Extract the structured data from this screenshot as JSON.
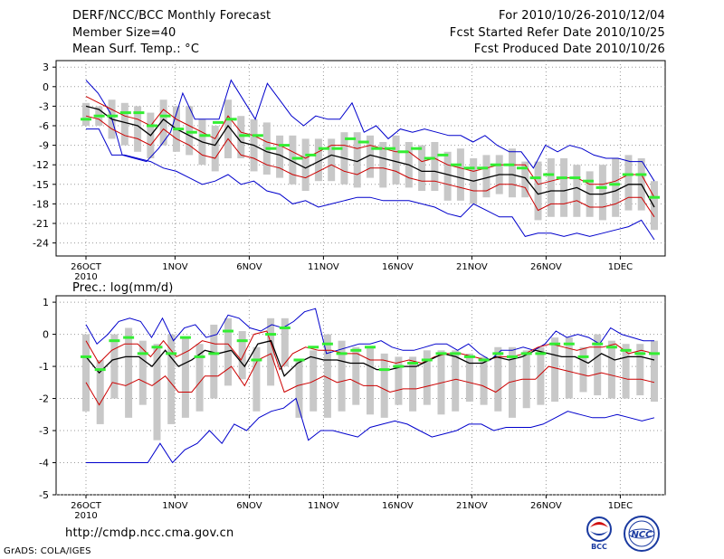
{
  "header": {
    "title": "DERF/NCC/BCC Monthly Forecast",
    "member_size": "Member Size=40",
    "variable": "Mean Surf. Temp.: °C",
    "forecast_period": "For 2010/10/26-2010/12/04",
    "started_refer": "Fcst Started Refer Date 2010/10/25",
    "produced": "Fcst Produced Date 2010/10/26"
  },
  "footer": {
    "url": "http://cmdp.ncc.cma.gov.cn",
    "credit": "GrADS: COLA/IGES",
    "logo_bcc": "BCC",
    "logo_ncc": "NCC"
  },
  "colors": {
    "max_min": "#0000cc",
    "spread": "#cc0000",
    "mean": "#000000",
    "observed": "#33ee33",
    "box": "#c8c8c8"
  },
  "chart_data": [
    {
      "type": "line",
      "title": "Mean Surf. Temp.: °C",
      "x_tick_labels": [
        "26OCT",
        "1NOV",
        "6NOV",
        "11NOV",
        "16NOV",
        "21NOV",
        "26NOV",
        "1DEC"
      ],
      "x_tick_days": [
        0,
        6,
        11,
        16,
        21,
        26,
        31,
        36
      ],
      "x_year_label": "2010",
      "ylim": [
        -26,
        4
      ],
      "yticks": [
        3,
        0,
        -3,
        -6,
        -9,
        -12,
        -15,
        -18,
        -21,
        -24
      ],
      "series": [
        {
          "name": "max",
          "values": [
            1,
            -1,
            -4,
            -10.5,
            -11,
            -11.5,
            -9.5,
            -7,
            -1,
            -5,
            -5,
            -5,
            1,
            -2,
            -5,
            0.5,
            -2,
            -4.5,
            -6,
            -4.5,
            -5,
            -5,
            -2.5,
            -7,
            -6,
            -8,
            -6.5,
            -7,
            -6.5,
            -7,
            -7.5,
            -7.5,
            -8.5,
            -7.5,
            -9,
            -10,
            -10,
            -12.5,
            -9,
            -10,
            -9,
            -9.5,
            -10.5,
            -11,
            -11,
            -11.5,
            -11.5,
            -14.5
          ]
        },
        {
          "name": "min",
          "values": [
            -6.5,
            -6.5,
            -10.5,
            -10.5,
            -11,
            -11.5,
            -12.5,
            -13,
            -14,
            -15,
            -14.5,
            -13.5,
            -15,
            -14.5,
            -16,
            -16.5,
            -18,
            -17.5,
            -18.5,
            -18,
            -17.5,
            -17,
            -17,
            -17.5,
            -17.5,
            -17.5,
            -18,
            -18.5,
            -19.5,
            -20,
            -18,
            -19,
            -20,
            -20,
            -23,
            -22.5,
            -22.5,
            -23,
            -22.5,
            -23,
            -22.5,
            -22,
            -21.5,
            -20.5,
            -23.5
          ]
        },
        {
          "name": "mean_plus_std",
          "values": [
            -1.5,
            -2.5,
            -3.5,
            -4.5,
            -5,
            -6,
            -3.5,
            -5,
            -6,
            -7,
            -8,
            -4.5,
            -7,
            -7.5,
            -8.5,
            -9,
            -10,
            -11,
            -10,
            -9,
            -9,
            -9.5,
            -9,
            -9.5,
            -10,
            -10,
            -11.5,
            -11,
            -12,
            -12.5,
            -13,
            -12.5,
            -12,
            -12,
            -12,
            -15,
            -14.5,
            -14,
            -14,
            -15,
            -15,
            -14.5,
            -13.5,
            -13.5,
            -17
          ]
        },
        {
          "name": "mean",
          "values": [
            -3,
            -3.5,
            -5,
            -5.5,
            -6,
            -7.5,
            -5,
            -6.5,
            -7.5,
            -8.5,
            -9,
            -6,
            -8.5,
            -9,
            -10,
            -10.5,
            -11.5,
            -12.5,
            -11.5,
            -10.5,
            -11,
            -11.5,
            -10.5,
            -11,
            -11.5,
            -12,
            -13,
            -13,
            -13.5,
            -14,
            -14.5,
            -14,
            -13.5,
            -13.5,
            -14,
            -16.5,
            -16,
            -16,
            -15.5,
            -16.5,
            -16.5,
            -16,
            -15,
            -15,
            -18.5
          ]
        },
        {
          "name": "mean_minus_std",
          "values": [
            -4.5,
            -5,
            -6.5,
            -7.5,
            -8,
            -9,
            -6.5,
            -8,
            -9,
            -10.5,
            -11,
            -8,
            -10.5,
            -11,
            -12,
            -12.5,
            -13.5,
            -14,
            -13,
            -12,
            -13,
            -13.5,
            -12.5,
            -12.5,
            -13,
            -14,
            -14.5,
            -14.5,
            -15,
            -15.5,
            -16,
            -16,
            -15,
            -15,
            -15.5,
            -19,
            -18,
            -18,
            -17.5,
            -18.5,
            -18.5,
            -18,
            -17,
            -17,
            -20
          ]
        },
        {
          "name": "observed",
          "values": [
            -5,
            -4.5,
            -4.5,
            -4,
            -4,
            -6,
            -4.5,
            -6.5,
            -7,
            -7.5,
            -5.5,
            -5,
            -7.5,
            -7.5,
            -9.5,
            -9,
            -11,
            -10.5,
            -9.5,
            -9.5,
            -8,
            -8.5,
            -9.5,
            -9.5,
            -10,
            -9.5,
            -11,
            -10.5,
            -12,
            -12.5,
            -12.5,
            -12,
            -12,
            -12.5,
            -14,
            -13.5,
            -14,
            -14,
            -14.5,
            -15.5,
            -15,
            -13.5,
            -13.5,
            -17
          ]
        }
      ],
      "box_top": [
        -2.5,
        -3,
        -2,
        -2.5,
        -3,
        -4,
        -2,
        -3,
        -3,
        -5,
        -6,
        -2,
        -4.5,
        -5,
        -5.5,
        -7.5,
        -7.5,
        -8,
        -8,
        -8,
        -7,
        -7,
        -7.5,
        -8.5,
        -7.5,
        -8.5,
        -9,
        -8.5,
        -10,
        -9.5,
        -11,
        -10.5,
        -10.5,
        -9.5,
        -11.5,
        -11.5,
        -11,
        -11,
        -12,
        -13,
        -12,
        -11,
        -10.5,
        -11,
        -14.5
      ],
      "box_bottom": [
        -6,
        -6,
        -8,
        -9,
        -10,
        -11,
        -9,
        -10,
        -10.5,
        -12,
        -13,
        -11,
        -11,
        -13,
        -13.5,
        -14,
        -15,
        -16,
        -14.5,
        -14.5,
        -15,
        -15.5,
        -14,
        -15.5,
        -15,
        -15.5,
        -16,
        -16,
        -17.5,
        -17.5,
        -18,
        -17,
        -16.5,
        -17,
        -17,
        -20.5,
        -20,
        -20,
        -20,
        -20,
        -20.5,
        -20,
        -19,
        -19,
        -22
      ]
    },
    {
      "type": "line",
      "title": "Prec.: log(mm/d)",
      "x_tick_labels": [
        "26OCT",
        "1NOV",
        "6NOV",
        "11NOV",
        "16NOV",
        "21NOV",
        "26NOV",
        "1DEC"
      ],
      "x_tick_days": [
        0,
        6,
        11,
        16,
        21,
        26,
        31,
        36
      ],
      "x_year_label": "2010",
      "ylim": [
        -5,
        1.2
      ],
      "yticks": [
        1,
        0,
        -1,
        -2,
        -3,
        -4,
        -5
      ],
      "series": [
        {
          "name": "max",
          "values": [
            0.3,
            -0.3,
            0,
            0.4,
            0.5,
            0.4,
            -0.1,
            0.5,
            -0.2,
            0.2,
            0.3,
            -0.1,
            0,
            0.6,
            0.5,
            0.2,
            0.1,
            0.3,
            0.2,
            0.4,
            0.7,
            0.8,
            -0.6,
            -0.5,
            -0.4,
            -0.3,
            -0.3,
            -0.2,
            -0.4,
            -0.5,
            -0.5,
            -0.4,
            -0.3,
            -0.3,
            -0.5,
            -0.3,
            -0.6,
            -0.8,
            -0.5,
            -0.5,
            -0.4,
            -0.5,
            -0.3,
            0.1,
            -0.1,
            0,
            -0.1,
            -0.3,
            0.2,
            0,
            -0.1,
            -0.2,
            -0.2
          ]
        },
        {
          "name": "min",
          "values": [
            -4,
            -4,
            -4,
            -4,
            -4,
            -4,
            -3.4,
            -4,
            -3.6,
            -3.4,
            -3.0,
            -3.4,
            -2.8,
            -3.0,
            -2.6,
            -2.4,
            -2.3,
            -2.0,
            -3.3,
            -3.0,
            -3.0,
            -3.1,
            -3.2,
            -2.9,
            -2.8,
            -2.7,
            -2.8,
            -3.0,
            -3.2,
            -3.1,
            -3.0,
            -2.8,
            -2.8,
            -3.0,
            -2.9,
            -2.9,
            -2.9,
            -2.8,
            -2.6,
            -2.4,
            -2.5,
            -2.6,
            -2.6,
            -2.5,
            -2.6,
            -2.7,
            -2.6
          ]
        },
        {
          "name": "mean_plus_std",
          "values": [
            -0.2,
            -0.9,
            -0.5,
            -0.3,
            -0.3,
            -0.7,
            -0.2,
            -0.7,
            -0.5,
            -0.2,
            -0.3,
            -0.3,
            -0.8,
            0,
            0.1,
            -1.1,
            -0.6,
            -0.4,
            -0.5,
            -0.5,
            -0.6,
            -0.6,
            -0.8,
            -0.8,
            -0.9,
            -0.8,
            -0.9,
            -0.7,
            -0.6,
            -0.6,
            -0.7,
            -0.8,
            -0.7,
            -0.7,
            -0.6,
            -0.4,
            -0.3,
            -0.4,
            -0.5,
            -0.4,
            -0.4,
            -0.3,
            -0.6,
            -0.5,
            -0.6
          ]
        },
        {
          "name": "mean",
          "values": [
            -0.7,
            -1.2,
            -0.8,
            -0.7,
            -0.7,
            -1.0,
            -0.5,
            -1.0,
            -0.8,
            -0.5,
            -0.6,
            -0.5,
            -1.0,
            -0.3,
            -0.2,
            -1.3,
            -0.9,
            -0.7,
            -0.8,
            -0.8,
            -0.9,
            -0.9,
            -1.1,
            -1.1,
            -1.0,
            -1.0,
            -0.8,
            -0.6,
            -0.7,
            -0.9,
            -0.9,
            -0.7,
            -0.8,
            -0.7,
            -0.5,
            -0.6,
            -0.7,
            -0.7,
            -0.9,
            -0.6,
            -0.8,
            -0.7,
            -0.7,
            -0.8
          ]
        },
        {
          "name": "mean_minus_std",
          "values": [
            -1.5,
            -2.2,
            -1.5,
            -1.6,
            -1.4,
            -1.6,
            -1.3,
            -1.8,
            -1.8,
            -1.3,
            -1.3,
            -1.0,
            -1.6,
            -0.8,
            -0.6,
            -1.8,
            -1.6,
            -1.5,
            -1.3,
            -1.5,
            -1.4,
            -1.6,
            -1.6,
            -1.8,
            -1.7,
            -1.7,
            -1.6,
            -1.5,
            -1.4,
            -1.5,
            -1.6,
            -1.8,
            -1.5,
            -1.4,
            -1.4,
            -1.0,
            -1.1,
            -1.2,
            -1.3,
            -1.2,
            -1.3,
            -1.4,
            -1.4,
            -1.5
          ]
        },
        {
          "name": "observed",
          "values": [
            -0.7,
            -1.1,
            -0.2,
            -0.1,
            -0.6,
            -0.4,
            -0.6,
            -0.1,
            -0.7,
            -0.6,
            0.1,
            -0.2,
            -0.8,
            0.0,
            0.2,
            -0.8,
            -0.4,
            -0.3,
            -0.6,
            -0.5,
            -0.4,
            -1.1,
            -1.0,
            -0.9,
            -0.8,
            -0.6,
            -0.6,
            -0.7,
            -0.8,
            -0.6,
            -0.7,
            -0.6,
            -0.6,
            -0.3,
            -0.3,
            -0.7,
            -0.3,
            -0.4,
            -0.5,
            -0.6,
            -0.6
          ]
        }
      ],
      "box_top": [
        0,
        -0.8,
        0,
        0.2,
        -0.2,
        -0.3,
        0,
        -0.1,
        -0.3,
        0.3,
        0.5,
        0.1,
        -0.4,
        0.5,
        0.5,
        -0.8,
        -0.5,
        0,
        -0.2,
        -0.4,
        -0.4,
        -0.6,
        -0.7,
        -0.7,
        -0.5,
        -0.5,
        -0.5,
        -0.6,
        -0.7,
        -0.4,
        -0.4,
        -0.5,
        -0.4,
        -0.1,
        -0.1,
        -0.4,
        0,
        -0.2,
        -0.3,
        -0.3,
        -0.2
      ],
      "box_bottom": [
        -2.4,
        -2.8,
        -2.0,
        -2.6,
        -2.2,
        -3.3,
        -2.8,
        -2.6,
        -2.4,
        -2.0,
        -1.6,
        -1.4,
        -2.4,
        -1.6,
        -1.0,
        -2.6,
        -2.4,
        -2.6,
        -2.4,
        -2.2,
        -2.5,
        -2.6,
        -2.2,
        -2.4,
        -2.2,
        -2.5,
        -2.4,
        -2.1,
        -2.2,
        -2.4,
        -2.6,
        -2.3,
        -2.2,
        -2.1,
        -2.0,
        -1.8,
        -1.9,
        -2.0,
        -2.0,
        -1.9,
        -2.1
      ]
    }
  ]
}
